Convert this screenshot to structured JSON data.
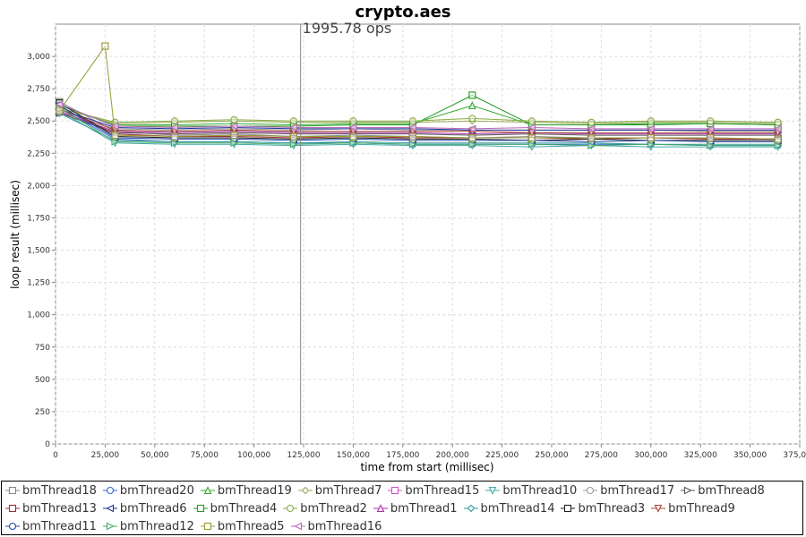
{
  "chart_data": {
    "type": "scatter",
    "title": "crypto.aes",
    "annotation": "1995.78 ops",
    "annotation_x": 123500,
    "xlabel": "time from start (millisec)",
    "ylabel": "loop result (millisec)",
    "xlim": [
      0,
      375000
    ],
    "ylim": [
      0,
      3250
    ],
    "x_ticks": [
      0,
      25000,
      50000,
      75000,
      100000,
      125000,
      150000,
      175000,
      200000,
      225000,
      250000,
      275000,
      300000,
      325000,
      350000,
      375000
    ],
    "x_tick_labels": [
      "0",
      "25,000",
      "50,000",
      "75,000",
      "100,000",
      "125,000",
      "150,000",
      "175,000",
      "200,000",
      "225,000",
      "250,000",
      "275,000",
      "300,000",
      "325,000",
      "350,000",
      "375,000"
    ],
    "y_ticks": [
      0,
      250,
      500,
      750,
      1000,
      1250,
      1500,
      1750,
      2000,
      2250,
      2500,
      2750,
      3000
    ],
    "y_tick_labels": [
      "0",
      "250",
      "500",
      "750",
      "1,000",
      "1,250",
      "1,500",
      "1,750",
      "2,000",
      "2,250",
      "2,500",
      "2,750",
      "3,000"
    ],
    "grid": true,
    "legend_position": "bottom",
    "series": [
      {
        "name": "bmThread18",
        "color": "#888888",
        "marker": "square",
        "x": [
          2000,
          30000,
          60000,
          90000,
          120000,
          150000,
          180000,
          210000,
          240000,
          270000,
          300000,
          330000,
          364000
        ],
        "y": [
          2650,
          2420,
          2390,
          2400,
          2380,
          2390,
          2380,
          2370,
          2380,
          2370,
          2370,
          2370,
          2360
        ]
      },
      {
        "name": "bmThread20",
        "color": "#3366cc",
        "marker": "circle",
        "x": [
          2000,
          30000,
          60000,
          90000,
          120000,
          150000,
          180000,
          210000,
          240000,
          270000,
          300000,
          330000,
          364000
        ],
        "y": [
          2600,
          2360,
          2340,
          2340,
          2330,
          2330,
          2320,
          2320,
          2320,
          2320,
          2320,
          2310,
          2310
        ]
      },
      {
        "name": "bmThread19",
        "color": "#33aa33",
        "marker": "triangle-up",
        "x": [
          2000,
          30000,
          60000,
          90000,
          120000,
          150000,
          180000,
          210000,
          240000,
          270000,
          300000,
          330000,
          364000
        ],
        "y": [
          2620,
          2470,
          2470,
          2480,
          2470,
          2480,
          2480,
          2620,
          2470,
          2470,
          2480,
          2480,
          2470
        ]
      },
      {
        "name": "bmThread7",
        "color": "#99aa55",
        "marker": "diamond",
        "x": [
          2000,
          30000,
          60000,
          90000,
          120000,
          150000,
          180000,
          210000,
          240000,
          270000,
          300000,
          330000,
          364000
        ],
        "y": [
          2600,
          2480,
          2490,
          2500,
          2490,
          2490,
          2490,
          2500,
          2490,
          2480,
          2490,
          2490,
          2480
        ]
      },
      {
        "name": "bmThread15",
        "color": "#cc55cc",
        "marker": "square",
        "x": [
          2000,
          30000,
          60000,
          90000,
          120000,
          150000,
          180000,
          210000,
          240000,
          270000,
          300000,
          330000,
          364000
        ],
        "y": [
          2580,
          2400,
          2380,
          2390,
          2380,
          2380,
          2370,
          2370,
          2370,
          2370,
          2370,
          2360,
          2360
        ]
      },
      {
        "name": "bmThread10",
        "color": "#44aaaa",
        "marker": "triangle-down",
        "x": [
          2000,
          30000,
          60000,
          90000,
          120000,
          150000,
          180000,
          210000,
          240000,
          270000,
          300000,
          330000,
          364000
        ],
        "y": [
          2580,
          2330,
          2320,
          2320,
          2310,
          2320,
          2310,
          2310,
          2300,
          2310,
          2300,
          2300,
          2300
        ]
      },
      {
        "name": "bmThread17",
        "color": "#999999",
        "marker": "circle",
        "x": [
          2000,
          30000,
          60000,
          90000,
          120000,
          150000,
          180000,
          210000,
          240000,
          270000,
          300000,
          330000,
          364000
        ],
        "y": [
          2570,
          2440,
          2430,
          2440,
          2430,
          2440,
          2430,
          2430,
          2430,
          2430,
          2430,
          2420,
          2420
        ]
      },
      {
        "name": "bmThread8",
        "color": "#555555",
        "marker": "triangle-right",
        "x": [
          2000,
          30000,
          60000,
          90000,
          120000,
          150000,
          180000,
          210000,
          240000,
          270000,
          300000,
          330000,
          364000
        ],
        "y": [
          2560,
          2410,
          2400,
          2410,
          2400,
          2400,
          2400,
          2390,
          2400,
          2390,
          2390,
          2390,
          2390
        ]
      },
      {
        "name": "bmThread13",
        "color": "#993333",
        "marker": "square",
        "x": [
          2000,
          30000,
          60000,
          90000,
          120000,
          150000,
          180000,
          210000,
          240000,
          270000,
          300000,
          330000,
          364000
        ],
        "y": [
          2610,
          2400,
          2380,
          2380,
          2370,
          2380,
          2370,
          2370,
          2370,
          2360,
          2370,
          2360,
          2360
        ]
      },
      {
        "name": "bmThread6",
        "color": "#223399",
        "marker": "triangle-left",
        "x": [
          2000,
          30000,
          60000,
          90000,
          120000,
          150000,
          180000,
          210000,
          240000,
          270000,
          300000,
          330000,
          364000
        ],
        "y": [
          2590,
          2450,
          2440,
          2450,
          2440,
          2440,
          2440,
          2430,
          2430,
          2430,
          2430,
          2430,
          2430
        ]
      },
      {
        "name": "bmThread4",
        "color": "#229922",
        "marker": "square",
        "x": [
          2000,
          30000,
          60000,
          90000,
          120000,
          150000,
          180000,
          210000,
          240000,
          270000,
          300000,
          330000,
          364000
        ],
        "y": [
          2630,
          2460,
          2460,
          2460,
          2460,
          2470,
          2470,
          2700,
          2470,
          2470,
          2470,
          2480,
          2470
        ]
      },
      {
        "name": "bmThread2",
        "color": "#88aa44",
        "marker": "circle",
        "x": [
          2000,
          30000,
          60000,
          90000,
          120000,
          150000,
          180000,
          210000,
          240000,
          270000,
          300000,
          330000,
          364000
        ],
        "y": [
          2600,
          2490,
          2500,
          2510,
          2500,
          2500,
          2500,
          2520,
          2500,
          2490,
          2500,
          2500,
          2490
        ]
      },
      {
        "name": "bmThread1",
        "color": "#aa33aa",
        "marker": "triangle-up",
        "x": [
          2000,
          30000,
          60000,
          90000,
          120000,
          150000,
          180000,
          210000,
          240000,
          270000,
          300000,
          330000,
          364000
        ],
        "y": [
          2570,
          2420,
          2410,
          2420,
          2410,
          2410,
          2410,
          2400,
          2410,
          2400,
          2400,
          2400,
          2400
        ]
      },
      {
        "name": "bmThread14",
        "color": "#339999",
        "marker": "diamond",
        "x": [
          2000,
          30000,
          60000,
          90000,
          120000,
          150000,
          180000,
          210000,
          240000,
          270000,
          300000,
          330000,
          364000
        ],
        "y": [
          2560,
          2350,
          2340,
          2340,
          2330,
          2340,
          2330,
          2330,
          2330,
          2330,
          2320,
          2320,
          2320
        ]
      },
      {
        "name": "bmThread3",
        "color": "#222222",
        "marker": "square",
        "x": [
          2000,
          30000,
          60000,
          90000,
          120000,
          150000,
          180000,
          210000,
          240000,
          270000,
          300000,
          330000,
          364000
        ],
        "y": [
          2640,
          2380,
          2370,
          2370,
          2360,
          2370,
          2360,
          2360,
          2350,
          2360,
          2350,
          2350,
          2350
        ]
      },
      {
        "name": "bmThread9",
        "color": "#aa4433",
        "marker": "triangle-down",
        "x": [
          2000,
          30000,
          60000,
          90000,
          120000,
          150000,
          180000,
          210000,
          240000,
          270000,
          300000,
          330000,
          364000
        ],
        "y": [
          2590,
          2430,
          2420,
          2430,
          2420,
          2420,
          2420,
          2420,
          2410,
          2410,
          2410,
          2410,
          2410
        ]
      },
      {
        "name": "bmThread11",
        "color": "#2244aa",
        "marker": "circle",
        "x": [
          2000,
          30000,
          60000,
          90000,
          120000,
          150000,
          180000,
          210000,
          240000,
          270000,
          300000,
          330000,
          364000
        ],
        "y": [
          2620,
          2370,
          2360,
          2360,
          2350,
          2360,
          2350,
          2350,
          2350,
          2340,
          2350,
          2340,
          2340
        ]
      },
      {
        "name": "bmThread12",
        "color": "#44aa66",
        "marker": "triangle-right",
        "x": [
          2000,
          30000,
          60000,
          90000,
          120000,
          150000,
          180000,
          210000,
          240000,
          270000,
          300000,
          330000,
          364000
        ],
        "y": [
          2600,
          2340,
          2330,
          2330,
          2320,
          2330,
          2320,
          2320,
          2320,
          2310,
          2320,
          2310,
          2310
        ]
      },
      {
        "name": "bmThread5",
        "color": "#999933",
        "marker": "square",
        "x": [
          2000,
          25000,
          30000,
          60000,
          90000,
          120000,
          150000,
          180000,
          210000,
          240000,
          270000,
          300000,
          330000,
          364000
        ],
        "y": [
          2580,
          3080,
          2390,
          2380,
          2390,
          2380,
          2380,
          2380,
          2370,
          2370,
          2370,
          2370,
          2370,
          2360
        ]
      },
      {
        "name": "bmThread16",
        "color": "#bb66bb",
        "marker": "triangle-left",
        "x": [
          2000,
          30000,
          60000,
          90000,
          120000,
          150000,
          180000,
          210000,
          240000,
          270000,
          300000,
          330000,
          364000
        ],
        "y": [
          2630,
          2460,
          2450,
          2460,
          2450,
          2450,
          2450,
          2440,
          2450,
          2440,
          2440,
          2440,
          2440
        ]
      }
    ]
  }
}
